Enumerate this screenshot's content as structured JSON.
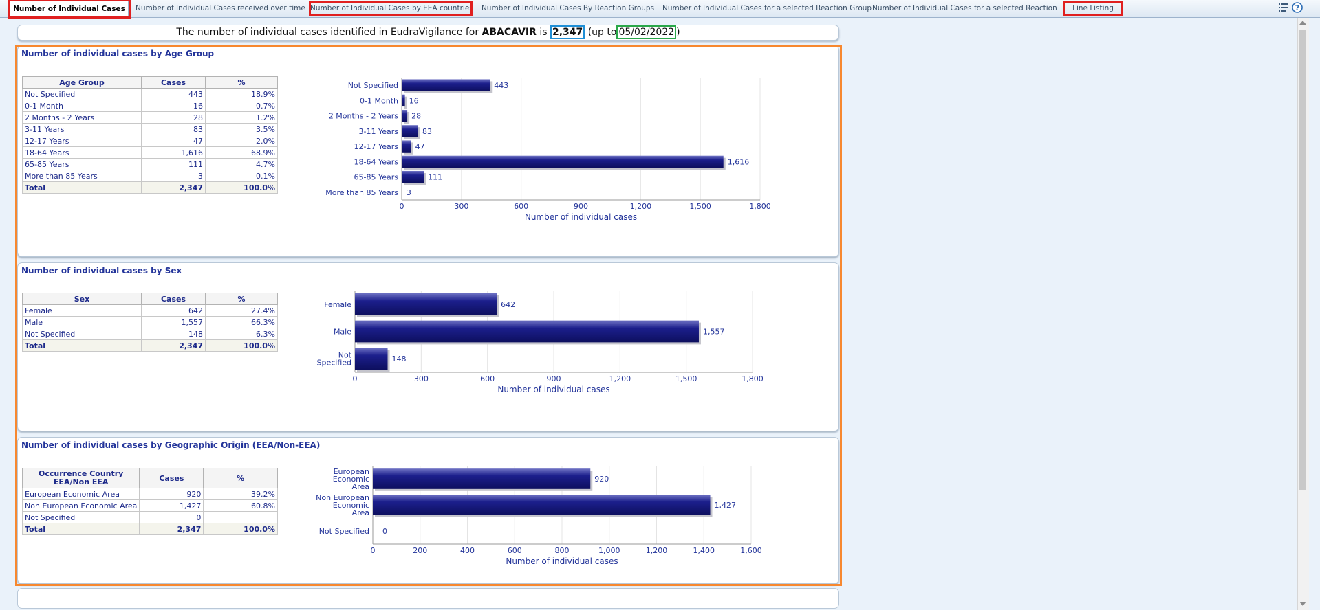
{
  "tabs": [
    {
      "label": "Number of Individual Cases",
      "active": true,
      "highlighted": true
    },
    {
      "label": "Number of Individual Cases received over time",
      "active": false,
      "highlighted": false
    },
    {
      "label": "Number of Individual Cases by EEA countries",
      "active": false,
      "highlighted": true
    },
    {
      "label": "Number of Individual Cases By Reaction Groups",
      "active": false,
      "highlighted": false
    },
    {
      "label": "Number of Individual Cases for a selected Reaction Group",
      "active": false,
      "highlighted": false
    },
    {
      "label": "Number of Individual Cases for a selected Reaction",
      "active": false,
      "highlighted": false
    },
    {
      "label": "Line Listing",
      "active": false,
      "highlighted": true
    }
  ],
  "toolbar_icons": [
    "page-options-icon",
    "help-icon"
  ],
  "headline": {
    "prefix": "The number of individual cases identified in EudraVigilance for",
    "substance": "ABACAVIR",
    "is": "is",
    "count": "2,347",
    "up_to_open": "(up to",
    "date": "05/02/2022",
    "close": ")"
  },
  "colors": {
    "bar": "#1c1f8c",
    "accent_text": "#23349a",
    "frame": "#f7882f",
    "tab_highlight": "#e02020",
    "count_box": "#1f8fd6",
    "date_box": "#2aa84a"
  },
  "sections": {
    "age": {
      "title": "Number of individual cases by Age Group",
      "table": {
        "headers": [
          "Age Group",
          "Cases",
          "%"
        ],
        "rows": [
          [
            "Not Specified",
            "443",
            "18.9%"
          ],
          [
            "0-1 Month",
            "16",
            "0.7%"
          ],
          [
            "2 Months - 2 Years",
            "28",
            "1.2%"
          ],
          [
            "3-11 Years",
            "83",
            "3.5%"
          ],
          [
            "12-17 Years",
            "47",
            "2.0%"
          ],
          [
            "18-64 Years",
            "1,616",
            "68.9%"
          ],
          [
            "65-85 Years",
            "111",
            "4.7%"
          ],
          [
            "More than 85 Years",
            "3",
            "0.1%"
          ]
        ],
        "total": [
          "Total",
          "2,347",
          "100.0%"
        ]
      }
    },
    "sex": {
      "title": "Number of individual cases by Sex",
      "table": {
        "headers": [
          "Sex",
          "Cases",
          "%"
        ],
        "rows": [
          [
            "Female",
            "642",
            "27.4%"
          ],
          [
            "Male",
            "1,557",
            "66.3%"
          ],
          [
            "Not Specified",
            "148",
            "6.3%"
          ]
        ],
        "total": [
          "Total",
          "2,347",
          "100.0%"
        ]
      }
    },
    "geo": {
      "title": "Number of individual cases by Geographic Origin (EEA/Non-EEA)",
      "table": {
        "headers": [
          "Occurrence Country EEA/Non EEA",
          "Cases",
          "%"
        ],
        "rows": [
          [
            "European Economic Area",
            "920",
            "39.2%"
          ],
          [
            "Non European Economic Area",
            "1,427",
            "60.8%"
          ],
          [
            "Not Specified",
            "0",
            ""
          ]
        ],
        "total": [
          "Total",
          "2,347",
          "100.0%"
        ]
      }
    }
  },
  "chart_data": [
    {
      "type": "bar",
      "orientation": "horizontal",
      "categories": [
        "Not Specified",
        "0-1 Month",
        "2 Months - 2 Years",
        "3-11 Years",
        "12-17 Years",
        "18-64 Years",
        "65-85 Years",
        "More than 85 Years"
      ],
      "category_lines": [
        [
          "Not Specified"
        ],
        [
          "0-1 Month"
        ],
        [
          "2 Months - 2 Years"
        ],
        [
          "3-11 Years"
        ],
        [
          "12-17 Years"
        ],
        [
          "18-64 Years"
        ],
        [
          "65-85 Years"
        ],
        [
          "More than 85 Years"
        ]
      ],
      "values": [
        443,
        16,
        28,
        83,
        47,
        1616,
        111,
        3
      ],
      "value_labels": [
        "443",
        "16",
        "28",
        "83",
        "47",
        "1,616",
        "111",
        "3"
      ],
      "xlabel": "Number of individual cases",
      "xlim": [
        0,
        1800
      ],
      "ticks": [
        0,
        300,
        600,
        900,
        1200,
        1500,
        1800
      ],
      "tick_labels": [
        "0",
        "300",
        "600",
        "900",
        "1,200",
        "1,500",
        "1,800"
      ],
      "grid": true
    },
    {
      "type": "bar",
      "orientation": "horizontal",
      "categories": [
        "Female",
        "Male",
        "Not Specified"
      ],
      "category_lines": [
        [
          "Female"
        ],
        [
          "Male"
        ],
        [
          "Not",
          "Specified"
        ]
      ],
      "values": [
        642,
        1557,
        148
      ],
      "value_labels": [
        "642",
        "1,557",
        "148"
      ],
      "xlabel": "Number of individual cases",
      "xlim": [
        0,
        1800
      ],
      "ticks": [
        0,
        300,
        600,
        900,
        1200,
        1500,
        1800
      ],
      "tick_labels": [
        "0",
        "300",
        "600",
        "900",
        "1,200",
        "1,500",
        "1,800"
      ],
      "grid": true
    },
    {
      "type": "bar",
      "orientation": "horizontal",
      "categories": [
        "European Economic Area",
        "Non European Economic Area",
        "Not Specified"
      ],
      "category_lines": [
        [
          "European",
          "Economic",
          "Area"
        ],
        [
          "Non European",
          "Economic",
          "Area"
        ],
        [
          "Not Specified"
        ]
      ],
      "values": [
        920,
        1427,
        0
      ],
      "value_labels": [
        "920",
        "1,427",
        "0"
      ],
      "xlabel": "Number of individual cases",
      "xlim": [
        0,
        1600
      ],
      "ticks": [
        0,
        200,
        400,
        600,
        800,
        1000,
        1200,
        1400,
        1600
      ],
      "tick_labels": [
        "0",
        "200",
        "400",
        "600",
        "800",
        "1,000",
        "1,200",
        "1,400",
        "1,600"
      ],
      "grid": true
    }
  ]
}
